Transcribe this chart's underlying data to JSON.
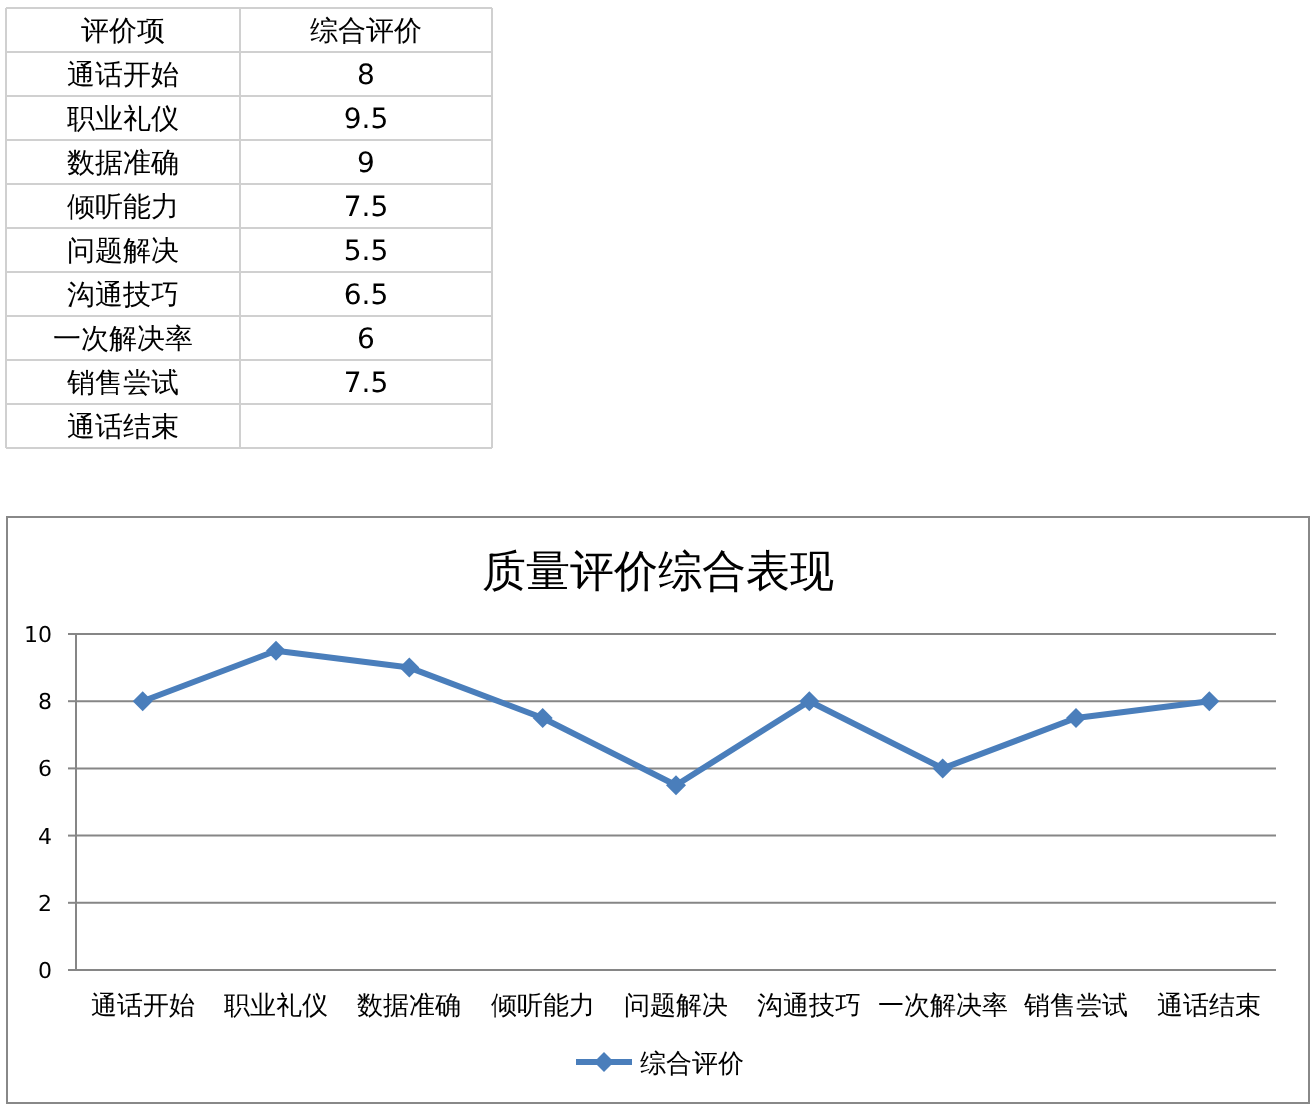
{
  "chart_data": [
    {
      "type": "other",
      "annotations": [
        "评价项",
        "综合评价",
        "通话开始",
        "8",
        "职业礼仪",
        "9.5",
        "数据准确",
        "9",
        "倾听能力",
        "7.5",
        "问题解决",
        "5.5",
        "沟通技巧",
        "6.5",
        "一次解决率",
        "6",
        "销售尝试",
        "7.5",
        "通话结束"
      ]
    },
    {
      "type": "line",
      "title": "质量评价综合表现",
      "categories": [
        "通话开始",
        "职业礼仪",
        "数据准确",
        "倾听能力",
        "问题解决",
        "沟通技巧",
        "一次解决率",
        "销售尝试",
        "通话结束"
      ],
      "series": [
        {
          "name": "综合评价",
          "color": "#4a7ebb",
          "values": [
            8,
            9.5,
            9,
            7.5,
            5.5,
            8,
            6,
            7.5,
            8
          ]
        }
      ],
      "ylim": [
        0,
        10
      ],
      "yticks": [
        0,
        2,
        4,
        6,
        8,
        10
      ],
      "grid": "y",
      "legend": "bottom",
      "marker": "diamond"
    }
  ]
}
